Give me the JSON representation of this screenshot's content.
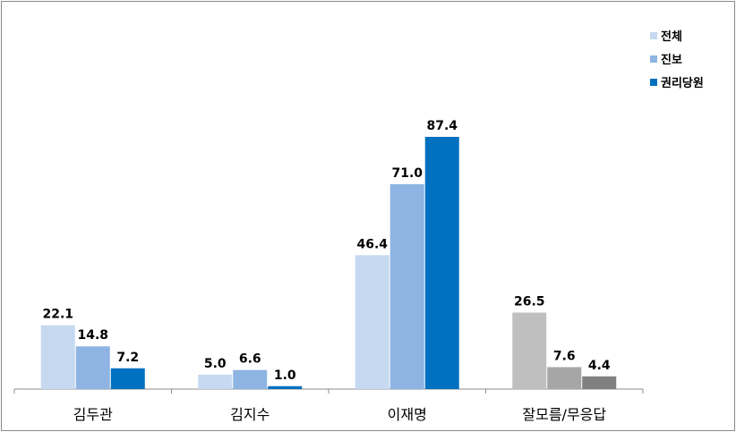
{
  "chart_data": {
    "type": "bar",
    "categories": [
      "김두관",
      "김지수",
      "이재명",
      "잘모름/무응답"
    ],
    "series": [
      {
        "name": "전체",
        "values": [
          22.1,
          5.0,
          46.4,
          26.5
        ]
      },
      {
        "name": "진보",
        "values": [
          14.8,
          6.6,
          71.0,
          7.6
        ]
      },
      {
        "name": "권리당원",
        "values": [
          7.2,
          1.0,
          87.4,
          4.4
        ]
      }
    ],
    "value_labels": [
      [
        "22.1",
        "5.0",
        "46.4",
        "26.5"
      ],
      [
        "14.8",
        "6.6",
        "71.0",
        "7.6"
      ],
      [
        "7.2",
        "1.0",
        "87.4",
        "4.4"
      ]
    ],
    "ylim": [
      0,
      90
    ],
    "grid": false,
    "legend": "top-right",
    "colors": [
      "#c6d9f1",
      "#8db4e2",
      "#0070c0"
    ],
    "last_category_colors": [
      "#bfbfbf",
      "#a6a6a6",
      "#808080"
    ]
  }
}
